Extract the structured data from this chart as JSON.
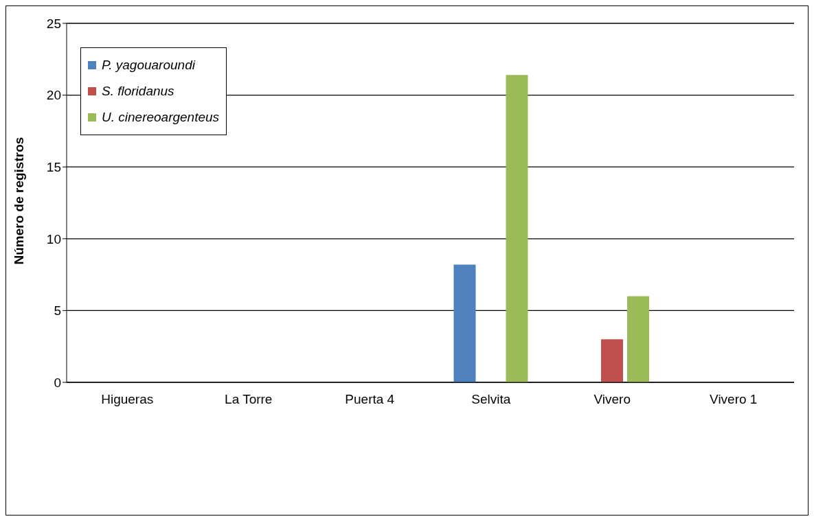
{
  "chart_data": {
    "type": "bar",
    "ylabel": "Número de registros",
    "categories": [
      "Higueras",
      "La Torre",
      "Puerta 4",
      "Selvita",
      "Vivero",
      "Vivero 1"
    ],
    "series": [
      {
        "name": "P. yagouaroundi",
        "color": "#4f81bd",
        "values": [
          0,
          0,
          0,
          8.2,
          0,
          0
        ]
      },
      {
        "name": "S. floridanus",
        "color": "#c0504d",
        "values": [
          0,
          0,
          0,
          0,
          3,
          0
        ]
      },
      {
        "name": "U. cinereoargenteus",
        "color": "#9bbb59",
        "values": [
          0,
          0,
          0,
          21.4,
          6,
          0
        ]
      }
    ],
    "ylim": [
      0,
      25
    ],
    "yticks": [
      0,
      5,
      10,
      15,
      20,
      25
    ],
    "grid": "y",
    "legend": "top left"
  }
}
